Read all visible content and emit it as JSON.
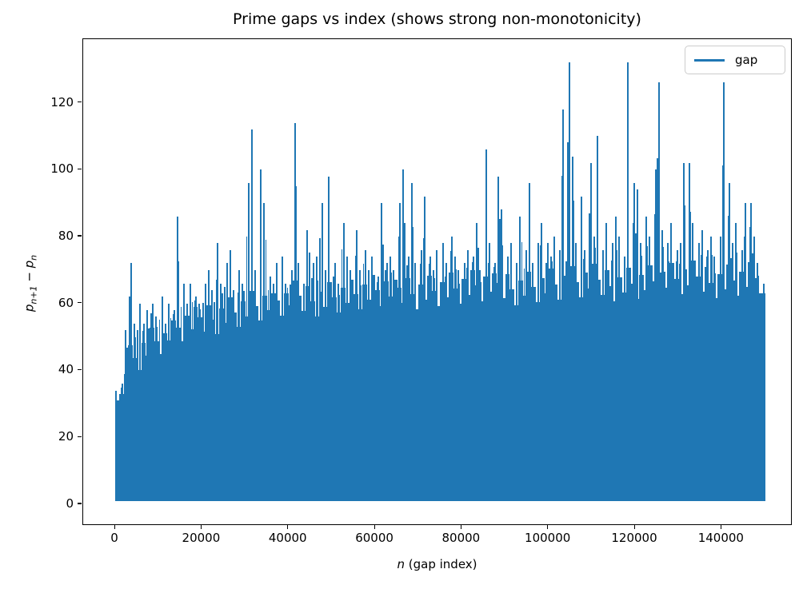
{
  "chart_data": {
    "type": "line",
    "title": "Prime gaps vs index (shows strong non-monotonicity)",
    "xlabel": "n (gap index)",
    "xlabel_parts": {
      "var": "n",
      "rest": " (gap index)"
    },
    "ylabel": "p_{n+1} - p_n",
    "ylabel_parts": {
      "p1": "p",
      "s1": "n+1",
      "op": " − ",
      "p2": "p",
      "s2": "n"
    },
    "series": [
      {
        "name": "gap",
        "color": "#1f77b4"
      }
    ],
    "legend": {
      "position": "upper right",
      "entries": [
        "gap"
      ]
    },
    "grid": false,
    "x_ticks": [
      0,
      20000,
      40000,
      60000,
      80000,
      100000,
      120000,
      140000
    ],
    "y_ticks": [
      0,
      20,
      40,
      60,
      80,
      100,
      120
    ],
    "xlim": [
      -7400,
      156000
    ],
    "ylim": [
      -6,
      139
    ],
    "n_points": 150000,
    "min_gap": 1,
    "max_gap": 132,
    "bucket_size": 1000,
    "envelope_max": [
      34,
      36,
      52,
      72,
      54,
      60,
      54,
      58,
      60,
      56,
      62,
      54,
      60,
      58,
      86,
      66,
      60,
      66,
      62,
      60,
      66,
      70,
      64,
      78,
      66,
      72,
      76,
      64,
      70,
      66,
      96,
      112,
      70,
      100,
      90,
      68,
      66,
      72,
      74,
      66,
      70,
      114,
      72,
      66,
      82,
      72,
      74,
      90,
      70,
      98,
      72,
      66,
      84,
      74,
      70,
      82,
      70,
      76,
      70,
      74,
      68,
      90,
      72,
      74,
      70,
      90,
      100,
      74,
      96,
      72,
      76,
      92,
      74,
      70,
      76,
      78,
      72,
      80,
      74,
      70,
      72,
      76,
      74,
      84,
      70,
      106,
      78,
      72,
      98,
      88,
      74,
      78,
      72,
      86,
      76,
      96,
      72,
      78,
      84,
      78,
      74,
      80,
      76,
      118,
      132,
      104,
      78,
      92,
      76,
      102,
      80,
      110,
      76,
      84,
      78,
      86,
      80,
      74,
      132,
      96,
      94,
      78,
      86,
      80,
      100,
      126,
      82,
      78,
      84,
      76,
      78,
      102,
      102,
      84,
      78,
      82,
      76,
      80,
      74,
      80,
      126,
      96,
      78,
      84,
      76,
      90,
      90,
      80,
      72,
      66
    ],
    "notable_spikes": [
      {
        "n": 217,
        "gap": 34
      },
      {
        "n": 3385,
        "gap": 72
      },
      {
        "n": 14357,
        "gap": 86
      },
      {
        "n": 30802,
        "gap": 96
      },
      {
        "n": 31545,
        "gap": 112
      },
      {
        "n": 33608,
        "gap": 100
      },
      {
        "n": 41161,
        "gap": 114
      },
      {
        "n": 49500,
        "gap": 98
      },
      {
        "n": 66400,
        "gap": 100
      },
      {
        "n": 85300,
        "gap": 106
      },
      {
        "n": 88100,
        "gap": 98
      },
      {
        "n": 103520,
        "gap": 118
      },
      {
        "n": 104071,
        "gap": 132
      },
      {
        "n": 105600,
        "gap": 104
      },
      {
        "n": 111800,
        "gap": 110
      },
      {
        "n": 118600,
        "gap": 132
      },
      {
        "n": 125800,
        "gap": 126
      },
      {
        "n": 131900,
        "gap": 102
      },
      {
        "n": 140200,
        "gap": 126
      },
      {
        "n": 141500,
        "gap": 96
      }
    ]
  }
}
